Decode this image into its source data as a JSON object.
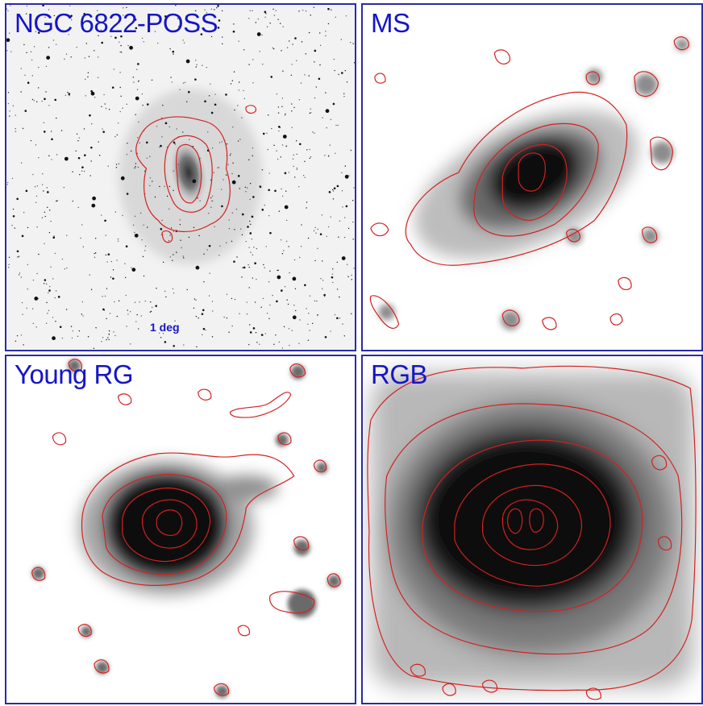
{
  "panels": {
    "poss": {
      "label": "NGC 6822-POSS",
      "scale_label": "1 deg"
    },
    "ms": {
      "label": "MS"
    },
    "young_rg": {
      "label": "Young RG"
    },
    "rgb": {
      "label": "RGB"
    }
  },
  "colors": {
    "label": "#1515c8",
    "border": "#2b2ba6",
    "contour": "#d42020"
  }
}
